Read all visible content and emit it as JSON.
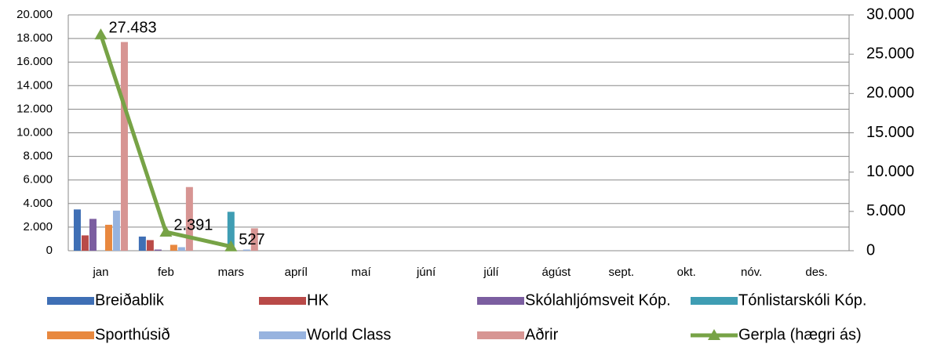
{
  "chart_data": {
    "type": "bar",
    "categories": [
      "jan",
      "feb",
      "mars",
      "apríl",
      "maí",
      "júní",
      "júlí",
      "ágúst",
      "sept.",
      "okt.",
      "nóv.",
      "des."
    ],
    "series": [
      {
        "name": "Breiðablik",
        "color": "#3f6fb5",
        "values": [
          3500,
          1200,
          0,
          null,
          null,
          null,
          null,
          null,
          null,
          null,
          null,
          null
        ]
      },
      {
        "name": "HK",
        "color": "#b94a48",
        "values": [
          1300,
          900,
          0,
          null,
          null,
          null,
          null,
          null,
          null,
          null,
          null,
          null
        ]
      },
      {
        "name": "Skólahljómsveit Kóp.",
        "color": "#7b5ea0",
        "values": [
          2700,
          100,
          0,
          null,
          null,
          null,
          null,
          null,
          null,
          null,
          null,
          null
        ]
      },
      {
        "name": "Tónlistarskóli Kóp.",
        "color": "#3f9db3",
        "values": [
          0,
          0,
          3300,
          null,
          null,
          null,
          null,
          null,
          null,
          null,
          null,
          null
        ]
      },
      {
        "name": "Sporthúsið",
        "color": "#e8883f",
        "values": [
          2200,
          500,
          0,
          null,
          null,
          null,
          null,
          null,
          null,
          null,
          null,
          null
        ]
      },
      {
        "name": "World Class",
        "color": "#97b3df",
        "values": [
          3400,
          300,
          100,
          null,
          null,
          null,
          null,
          null,
          null,
          null,
          null,
          null
        ]
      },
      {
        "name": "Aðrir",
        "color": "#d79593",
        "values": [
          17700,
          5400,
          1900,
          null,
          null,
          null,
          null,
          null,
          null,
          null,
          null,
          null
        ]
      },
      {
        "name": "Gerpla (hægri ás)",
        "color": "#77a346",
        "type": "line",
        "axis": "y2",
        "values": [
          27483,
          2391,
          527,
          null,
          null,
          null,
          null,
          null,
          null,
          null,
          null,
          null
        ],
        "value_labels": [
          "27.483",
          "2.391",
          "527",
          null,
          null,
          null,
          null,
          null,
          null,
          null,
          null,
          null
        ]
      }
    ],
    "ylim": [
      0,
      20000
    ],
    "yticks": [
      0,
      {
        "value": 2000,
        "label": "2.000"
      },
      {
        "value": 4000,
        "label": "4.000"
      },
      {
        "value": 6000,
        "label": "6.000"
      },
      {
        "value": 8000,
        "label": "8.000"
      },
      {
        "value": 10000,
        "label": "10.000"
      },
      {
        "value": 12000,
        "label": "12.000"
      },
      {
        "value": 14000,
        "label": "14.000"
      },
      {
        "value": 16000,
        "label": "16.000"
      },
      {
        "value": 18000,
        "label": "18.000"
      },
      {
        "value": 20000,
        "label": "20.000"
      }
    ],
    "y2lim": [
      0,
      30000
    ],
    "y2ticks": [
      0,
      {
        "value": 5000,
        "label": "5.000"
      },
      {
        "value": 10000,
        "label": "10.000"
      },
      {
        "value": 15000,
        "label": "15.000"
      },
      {
        "value": 20000,
        "label": "20.000"
      },
      {
        "value": 25000,
        "label": "25.000"
      },
      {
        "value": 30000,
        "label": "30.000"
      }
    ],
    "grid": true,
    "legend": "bottom"
  }
}
